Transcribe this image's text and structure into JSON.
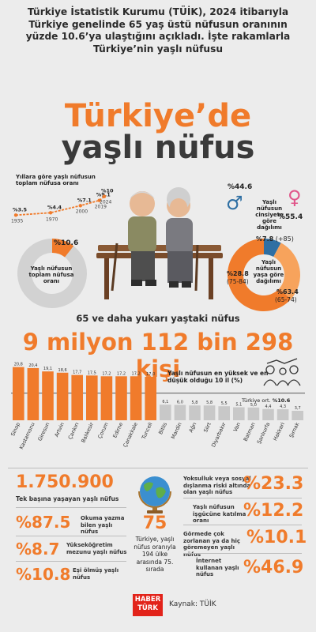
{
  "intro_text": "Türkiye İstatistik Kurumu (TÜİK), 2024 itibarıyla Türkiye genelinde 65 yaş üstü nüfusun oranının yüzde 10.6’ya ulaştığını açıkladı. İşte rakamlarla Türkiye’nin yaşlı nüfusu",
  "title_line1": "Türkiye’de",
  "title_line2": "yaşlı nüfus",
  "trend": {
    "title": "Yıllara göre yaşlı nüfusun toplam nüfusa oranı",
    "points": [
      {
        "year": "1935",
        "value": 3.5,
        "label": "%3.5"
      },
      {
        "year": "1970",
        "value": 4.4,
        "label": "%4.4"
      },
      {
        "year": "2000",
        "value": 7.1,
        "label": "%7.1"
      },
      {
        "year": "2019",
        "value": 9.1,
        "label": "%9.1"
      },
      {
        "year": "2024",
        "value": 10.6,
        "label": "%10.6"
      }
    ]
  },
  "donut_total": {
    "label": "Yaşlı nüfusun toplam nüfusa oranı",
    "value": 10.6,
    "value_label": "%10.6"
  },
  "gender": {
    "label": "Yaşlı nüfusun cinsiyete göre dağılımı",
    "male_label": "%44.6",
    "female_label": "%55.4",
    "male_value": 44.6,
    "female_value": 55.4,
    "male_symbol": "♂",
    "female_symbol": "♀"
  },
  "age_groups": {
    "label": "Yaşlı nüfusun yaşa göre dağılımı",
    "segments": [
      {
        "value": 7.8,
        "label": "%7.8",
        "range": "(+85)",
        "color": "#2f6fa3"
      },
      {
        "value": 28.8,
        "label": "%28.8",
        "range": "(75-84)",
        "color": "#f7a35c"
      },
      {
        "value": 63.4,
        "label": "%63.4",
        "range": "(65-74)",
        "color": "#f07b2b"
      }
    ]
  },
  "count_title": "65 ve daha yukarı yaştaki nüfus",
  "count_value": "9 milyon 112 bin 298 kişi",
  "chart_data": {
    "type": "bar",
    "title": "Yaşlı nüfusun en yüksek ve en düşük olduğu 10 il (%)",
    "categories": [
      "Sinop",
      "Kastamonu",
      "Giresun",
      "Artvin",
      "Çankırı",
      "Balıkesir",
      "Çorum",
      "Edirne",
      "Çanakkale",
      "Tunceli",
      "Bitlis",
      "Mardin",
      "Ağrı",
      "Siirt",
      "Diyarbakır",
      "Van",
      "Batman",
      "Şanlıurfa",
      "Hakkari",
      "Şırnak"
    ],
    "values": [
      20.8,
      20.4,
      19.1,
      18.6,
      17.7,
      17.5,
      17.2,
      17.2,
      17.2,
      17.0,
      6.1,
      6.0,
      5.8,
      5.8,
      5.5,
      5.1,
      5.0,
      4.4,
      4.3,
      3.7
    ],
    "value_labels": [
      "20,8",
      "20,4",
      "19,1",
      "18,6",
      "17,7",
      "17,5",
      "17,2",
      "17,2",
      "17,2",
      "17,0",
      "6,1",
      "6,0",
      "5,8",
      "5,8",
      "5,5",
      "5,1",
      "5,0",
      "4,4",
      "4,3",
      "3,7"
    ],
    "average_label": "Türkiye ort.",
    "average_value_label": "%10.6",
    "average": 10.6,
    "ylim": [
      0,
      21
    ]
  },
  "left_stats": {
    "alone": {
      "value": "1.750.900",
      "label": "Tek başına yaşayan yaşlı nüfus"
    },
    "items": [
      {
        "value": "%87.5",
        "label": "Okuma yazma bilen yaşlı nüfus"
      },
      {
        "value": "%8.7",
        "label": "Yükseköğretim mezunu yaşlı nüfus"
      },
      {
        "value": "%10.8",
        "label": "Eşi ölmüş yaşlı nüfus"
      }
    ]
  },
  "globe": {
    "rank": "75",
    "text": "Türkiye, yaşlı nüfus oranıyla 194 ülke arasında 75. sırada"
  },
  "right_stats": [
    {
      "label": "Yoksulluk veya sosyal dışlanma riski altında olan yaşlı nüfus",
      "value": "%23.3"
    },
    {
      "label": "Yaşlı nüfusun işgücüne katılma oranı",
      "value": "%12.2"
    },
    {
      "label": "Görmede çok zorlanan ya da hiç göremeyen yaşlı nüfus",
      "value": "%10.1"
    },
    {
      "label": "İnternet kullanan yaşlı nüfus",
      "value": "%46.9"
    }
  ],
  "footer": {
    "logo_top": "HABER",
    "logo_bottom": "TÜRK",
    "source": "Kaynak: TÜİK"
  }
}
